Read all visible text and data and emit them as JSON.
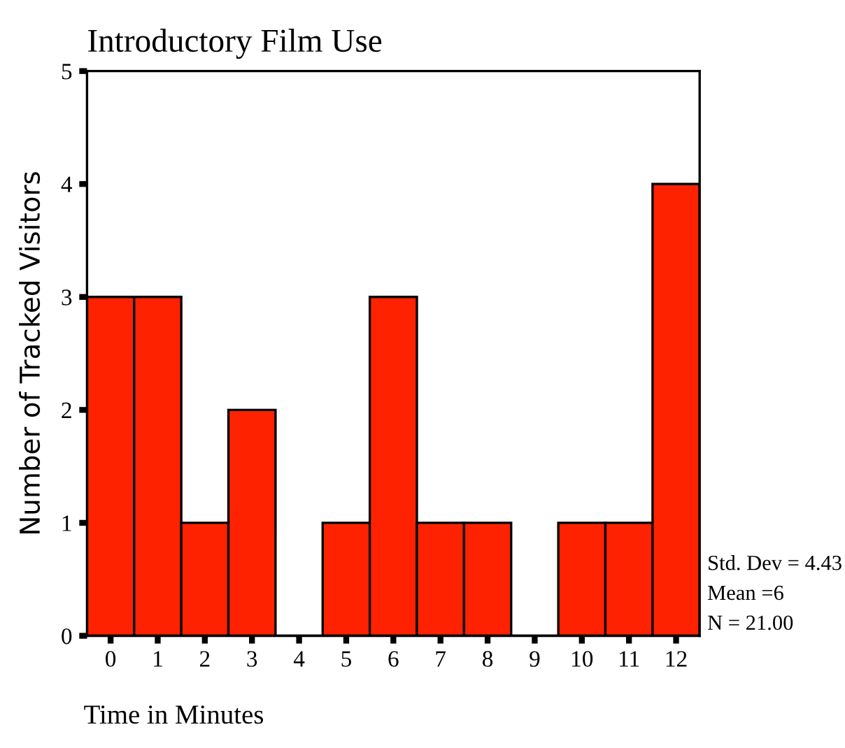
{
  "chart_data": {
    "type": "histogram",
    "title": "Introductory Film Use",
    "xlabel": "Time in Minutes",
    "ylabel": "Number of Tracked Visitors",
    "bins": [
      -0.5,
      0.5,
      1.5,
      2.5,
      3.5,
      4.5,
      5.5,
      6.5,
      7.5,
      8.5,
      9.5,
      10.5,
      11.5,
      12.5
    ],
    "values": [
      3,
      3,
      1,
      2,
      0,
      1,
      3,
      1,
      1,
      0,
      1,
      1,
      4
    ],
    "color": "#ff2200",
    "xlim": [
      -0.5,
      12.5
    ],
    "xticks": [
      0,
      1,
      2,
      3,
      4,
      5,
      6,
      7,
      8,
      9,
      10,
      11,
      12
    ],
    "ylim": [
      0,
      5
    ],
    "yticks": [
      0,
      1,
      2,
      3,
      4,
      5
    ],
    "grid": false,
    "annotations": [
      "Std. Dev = 4.43",
      "Mean =6",
      "N = 21.00"
    ]
  }
}
